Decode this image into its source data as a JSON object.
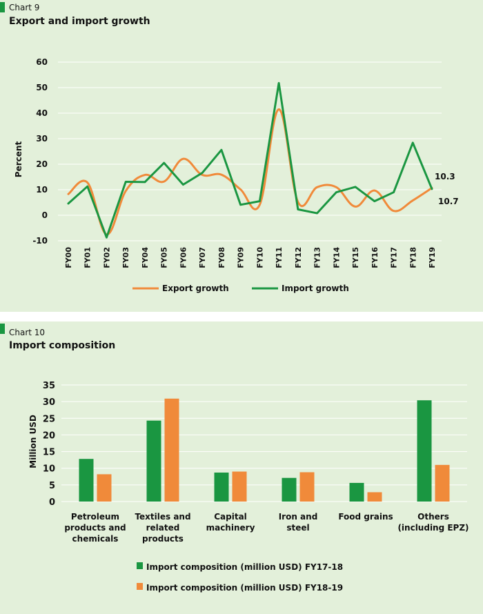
{
  "charts": [
    {
      "label": "Chart 9",
      "title": "Export and import growth"
    },
    {
      "label": "Chart 10",
      "title": "Import composition"
    }
  ],
  "colors": {
    "import": "#1a9641",
    "export": "#f08a3a",
    "grid": "#ffffff",
    "background": "#e3f0da"
  },
  "chart_data": [
    {
      "type": "line",
      "title": "Export and import growth",
      "ylabel": "Percent",
      "xlabel": "",
      "ylim": [
        -10,
        60
      ],
      "yticks": [
        -10,
        0,
        10,
        20,
        30,
        40,
        50,
        60
      ],
      "grid": "horizontal",
      "legend_position": "bottom",
      "categories": [
        "FY00",
        "FY01",
        "FY02",
        "FY03",
        "FY04",
        "FY05",
        "FY06",
        "FY07",
        "FY08",
        "FY09",
        "FY10",
        "FY11",
        "FY12",
        "FY13",
        "FY14",
        "FY15",
        "FY16",
        "FY17",
        "FY18",
        "FY19"
      ],
      "series": [
        {
          "name": "Export growth",
          "color": "#f08a3a",
          "values": [
            8.3,
            12.8,
            -7.5,
            9.5,
            15.8,
            13.2,
            22.1,
            15.8,
            15.9,
            10.1,
            4.1,
            41.5,
            5.2,
            11.0,
            11.0,
            3.4,
            9.7,
            1.7,
            5.8,
            10.7
          ]
        },
        {
          "name": "Import growth",
          "color": "#1a9641",
          "values": [
            4.6,
            11.3,
            -8.7,
            13.1,
            13.0,
            20.5,
            12.0,
            16.6,
            25.6,
            4.1,
            5.5,
            51.8,
            2.3,
            0.8,
            9.0,
            11.1,
            5.5,
            9.0,
            28.4,
            10.3
          ]
        }
      ],
      "annotations": [
        {
          "text": "10.3",
          "series": "Import growth",
          "x": "FY19",
          "y": 10.3
        },
        {
          "text": "10.7",
          "series": "Export growth",
          "x": "FY19",
          "y": 10.7
        }
      ]
    },
    {
      "type": "bar",
      "title": "Import composition",
      "ylabel": "Million USD",
      "xlabel": "",
      "ylim": [
        0,
        35
      ],
      "yticks": [
        0,
        5,
        10,
        15,
        20,
        25,
        30,
        35
      ],
      "grid": "horizontal",
      "legend_position": "bottom",
      "categories": [
        [
          "Petroleum",
          "products and",
          "chemicals"
        ],
        [
          "Textiles and",
          "related",
          "products"
        ],
        [
          "Capital",
          "machinery"
        ],
        [
          "Iron and",
          "steel"
        ],
        [
          "Food grains"
        ],
        [
          "Others",
          "(including EPZ)"
        ]
      ],
      "series": [
        {
          "name": "Import composition (million USD) FY17-18",
          "color": "#1a9641",
          "values": [
            12.8,
            24.3,
            8.7,
            7.1,
            5.6,
            30.4
          ]
        },
        {
          "name": "Import composition (million USD) FY18-19",
          "color": "#f08a3a",
          "values": [
            8.2,
            30.9,
            9.0,
            8.8,
            2.8,
            11.0
          ]
        }
      ]
    }
  ]
}
